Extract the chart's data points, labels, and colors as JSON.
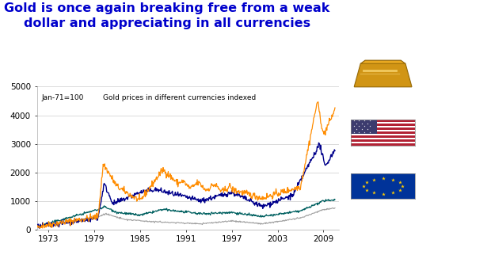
{
  "title_line1": "Gold is once again breaking free from a weak",
  "title_line2": "dollar and appreciating in all currencies",
  "title_color": "#0000CC",
  "title_fontsize": 11.5,
  "subtitle1": "Jan-71=100",
  "subtitle2": "Gold prices in different currencies indexed",
  "xlabel_ticks": [
    1973,
    1979,
    1985,
    1991,
    1997,
    2003,
    2009
  ],
  "ylim": [
    0,
    5000
  ],
  "yticks": [
    0,
    1000,
    2000,
    3000,
    4000,
    5000
  ],
  "color_orange": "#FF8C00",
  "color_blue": "#00008B",
  "color_teal": "#006060",
  "color_gray": "#A0A0A0",
  "bg_color": "#FFFFFF",
  "grid_color": "#CCCCCC"
}
